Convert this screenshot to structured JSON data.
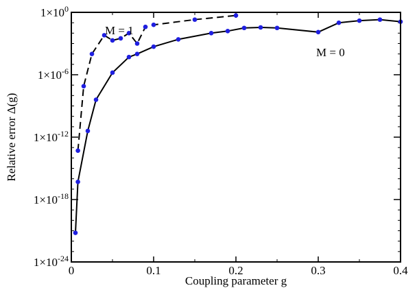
{
  "chart_data": {
    "type": "line",
    "xlabel": "Coupling parameter g",
    "ylabel": "Relative error Δ(g)",
    "xlim": [
      0,
      0.4
    ],
    "ylim_log10": [
      -24,
      0
    ],
    "y_scale": "log",
    "grid": false,
    "x_ticks": [
      {
        "value": 0,
        "label": "0"
      },
      {
        "value": 0.1,
        "label": "0.1"
      },
      {
        "value": 0.2,
        "label": "0.2"
      },
      {
        "value": 0.3,
        "label": "0.3"
      },
      {
        "value": 0.4,
        "label": "0.4"
      }
    ],
    "y_ticks": [
      {
        "exp": 0,
        "base": "1×10",
        "sup": "0"
      },
      {
        "exp": -6,
        "base": "1×10",
        "sup": "-6"
      },
      {
        "exp": -12,
        "base": "1×10",
        "sup": "-12"
      },
      {
        "exp": -18,
        "base": "1×10",
        "sup": "-18"
      },
      {
        "exp": -24,
        "base": "1×10",
        "sup": "-24"
      }
    ],
    "marker_color": "#1f1fe0",
    "line_color": "#000000",
    "series": [
      {
        "label": "M = 0",
        "style": "solid",
        "x": [
          0.005,
          0.008,
          0.02,
          0.03,
          0.05,
          0.07,
          0.08,
          0.1,
          0.13,
          0.17,
          0.19,
          0.21,
          0.23,
          0.25,
          0.3,
          0.325,
          0.35,
          0.375,
          0.4
        ],
        "log10_y": [
          -21.2,
          -16.3,
          -11.4,
          -8.4,
          -5.8,
          -4.3,
          -4.0,
          -3.3,
          -2.6,
          -2.0,
          -1.8,
          -1.5,
          -1.45,
          -1.5,
          -1.9,
          -1.0,
          -0.8,
          -0.7,
          -0.9
        ]
      },
      {
        "label": "M = 1",
        "style": "dashed",
        "x": [
          0.008,
          0.015,
          0.025,
          0.04,
          0.05,
          0.06,
          0.07,
          0.08,
          0.09,
          0.1,
          0.15,
          0.2
        ],
        "log10_y": [
          -13.3,
          -7.1,
          -4.0,
          -2.2,
          -2.7,
          -2.5,
          -2.0,
          -3.0,
          -1.4,
          -1.2,
          -0.7,
          -0.3
        ]
      }
    ]
  }
}
